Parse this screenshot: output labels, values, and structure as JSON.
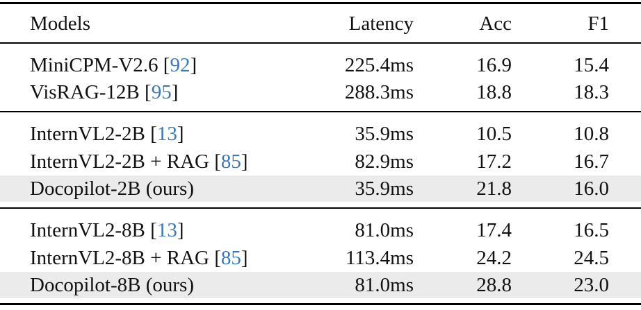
{
  "table": {
    "headers": {
      "model": "Models",
      "latency": "Latency",
      "acc": "Acc",
      "f1": "F1"
    },
    "groups": [
      {
        "rows": [
          {
            "model": "MiniCPM-V2.6",
            "cite": "92",
            "latency": "225.4ms",
            "acc": "16.9",
            "f1": "15.4"
          },
          {
            "model": "VisRAG-12B",
            "cite": "95",
            "latency": "288.3ms",
            "acc": "18.8",
            "f1": "18.3"
          }
        ]
      },
      {
        "rows": [
          {
            "model": "InternVL2-2B",
            "cite": "13",
            "latency": "35.9ms",
            "acc": "10.5",
            "f1": "10.8"
          },
          {
            "model": "InternVL2-2B + RAG",
            "cite": "85",
            "latency": "82.9ms",
            "acc": "17.2",
            "f1": "16.7"
          },
          {
            "model": "Docopilot-2B (ours)",
            "latency": "35.9ms",
            "acc": "21.8",
            "f1": "16.0"
          }
        ]
      },
      {
        "rows": [
          {
            "model": "InternVL2-8B",
            "cite": "13",
            "latency": "81.0ms",
            "acc": "17.4",
            "f1": "16.5"
          },
          {
            "model": "InternVL2-8B + RAG",
            "cite": "85",
            "latency": "113.4ms",
            "acc": "24.2",
            "f1": "24.5"
          },
          {
            "model": "Docopilot-8B (ours)",
            "latency": "81.0ms",
            "acc": "28.8",
            "f1": "23.0"
          }
        ]
      }
    ]
  },
  "colors": {
    "citation": "#3a78b5",
    "highlight_row": "#ebebeb",
    "rule": "#000000"
  }
}
